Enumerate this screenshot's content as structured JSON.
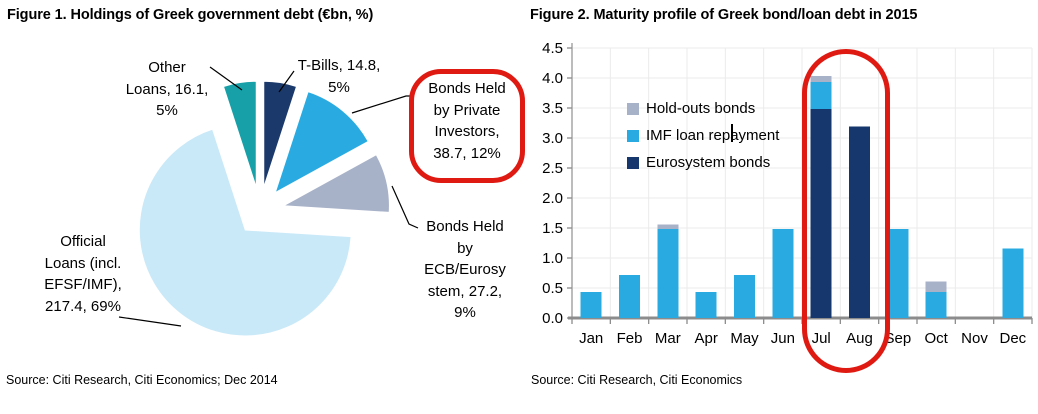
{
  "figure1": {
    "title": "Figure 1. Holdings of Greek government debt (€bn, %)",
    "source": "Source: Citi Research, Citi Economics; Dec 2014",
    "labels": {
      "other_loans": "Other\nLoans, 16.1,\n5%",
      "t_bills": "T-Bills, 14.8,\n5%",
      "private_investors": "Bonds Held\nby Private\nInvestors,\n38.7, 12%",
      "ecb_eurosystem": "Bonds Held\nby\nECB/Eurosy\nstem, 27.2,\n9%",
      "official_loans": "Official\nLoans (incl.\nEFSF/IMF),\n217.4, 69%"
    },
    "annotation_color": "#DF1A12"
  },
  "figure2": {
    "title": "Figure 2. Maturity profile of Greek bond/loan debt in 2015",
    "source": "Source: Citi Research, Citi Economics",
    "legend": [
      {
        "label": "Hold-outs bonds",
        "color": "#A7B1C8"
      },
      {
        "label": "IMF loan repayment",
        "color": "#29ABE2"
      },
      {
        "label": "Eurosystem bonds",
        "color": "#16376D"
      }
    ],
    "annotation_color": "#DF1A12"
  },
  "chart_data": [
    {
      "type": "pie",
      "title": "Figure 1. Holdings of Greek government debt (€bn, %)",
      "units": "€bn and % of total",
      "start_angle_deg": 0,
      "clockwise": true,
      "exploded": true,
      "slices": [
        {
          "label": "T-Bills",
          "value_bn": 14.8,
          "percent": 5,
          "color": "#1B3A6B"
        },
        {
          "label": "Bonds Held by Private Investors",
          "value_bn": 38.7,
          "percent": 12,
          "color": "#29ABE2"
        },
        {
          "label": "Bonds Held by ECB/Eurosystem",
          "value_bn": 27.2,
          "percent": 9,
          "color": "#A7B1C8"
        },
        {
          "label": "Official Loans (incl. EFSF/IMF)",
          "value_bn": 217.4,
          "percent": 69,
          "color": "#C9E9F8"
        },
        {
          "label": "Other Loans",
          "value_bn": 16.1,
          "percent": 5,
          "color": "#17A0A8"
        }
      ],
      "annotation": "red ring highlighting Bonds Held by Private Investors label"
    },
    {
      "type": "bar",
      "stacked": true,
      "title": "Figure 2. Maturity profile of Greek bond/loan debt in 2015",
      "categories": [
        "Jan",
        "Feb",
        "Mar",
        "Apr",
        "May",
        "Jun",
        "Jul",
        "Aug",
        "Sep",
        "Oct",
        "Nov",
        "Dec"
      ],
      "series": [
        {
          "name": "Eurosystem bonds",
          "color": "#16376D",
          "values": [
            0,
            0,
            0,
            0,
            0,
            0,
            3.48,
            3.19,
            0,
            0,
            0,
            0
          ]
        },
        {
          "name": "IMF loan repayment",
          "color": "#29ABE2",
          "values": [
            0.43,
            0.72,
            1.48,
            0.43,
            0.72,
            1.48,
            0.45,
            0,
            1.48,
            0.43,
            0,
            1.16
          ]
        },
        {
          "name": "Hold-outs bonds",
          "color": "#A7B1C8",
          "values": [
            0,
            0,
            0.08,
            0,
            0,
            0,
            0.1,
            0,
            0,
            0.18,
            0,
            0
          ]
        }
      ],
      "ylim": [
        0,
        4.5
      ],
      "ytick_step": 0.5,
      "ytick_labels": [
        "0.0",
        "0.5",
        "1.0",
        "1.5",
        "2.0",
        "2.5",
        "3.0",
        "3.5",
        "4.0",
        "4.5"
      ],
      "grid": true,
      "legend_position": "upper-left-inside",
      "annotation": "red ring highlighting Jul and Aug bars"
    }
  ]
}
